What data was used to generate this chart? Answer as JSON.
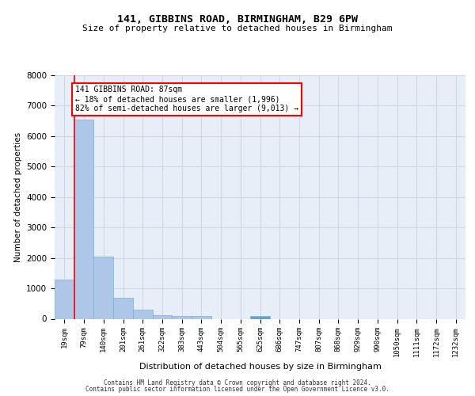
{
  "title1": "141, GIBBINS ROAD, BIRMINGHAM, B29 6PW",
  "title2": "Size of property relative to detached houses in Birmingham",
  "xlabel": "Distribution of detached houses by size in Birmingham",
  "ylabel": "Number of detached properties",
  "bin_labels": [
    "19sqm",
    "79sqm",
    "140sqm",
    "201sqm",
    "261sqm",
    "322sqm",
    "383sqm",
    "443sqm",
    "504sqm",
    "565sqm",
    "625sqm",
    "686sqm",
    "747sqm",
    "807sqm",
    "868sqm",
    "929sqm",
    "990sqm",
    "1050sqm",
    "1111sqm",
    "1172sqm",
    "1232sqm"
  ],
  "bar_values": [
    1300,
    6550,
    2050,
    680,
    290,
    130,
    80,
    100,
    0,
    0,
    100,
    0,
    0,
    0,
    0,
    0,
    0,
    0,
    0,
    0,
    0
  ],
  "bar_colors": [
    "#aec6e8",
    "#aec6e8",
    "#aec6e8",
    "#aec6e8",
    "#aec6e8",
    "#aec6e8",
    "#aec6e8",
    "#aec6e8",
    "#aec6e8",
    "#aec6e8",
    "#6a9fd8",
    "#aec6e8",
    "#aec6e8",
    "#aec6e8",
    "#aec6e8",
    "#aec6e8",
    "#aec6e8",
    "#aec6e8",
    "#aec6e8",
    "#aec6e8",
    "#aec6e8"
  ],
  "bar_edge_color": "#7aaed4",
  "vline_color": "red",
  "vline_x": 0.5,
  "annotation_text": "141 GIBBINS ROAD: 87sqm\n← 18% of detached houses are smaller (1,996)\n82% of semi-detached houses are larger (9,013) →",
  "annotation_box_color": "white",
  "annotation_box_edge_color": "red",
  "ylim": [
    0,
    8000
  ],
  "yticks": [
    0,
    1000,
    2000,
    3000,
    4000,
    5000,
    6000,
    7000,
    8000
  ],
  "grid_color": "#d0d8e8",
  "bg_color": "#e8eef8",
  "footer1": "Contains HM Land Registry data © Crown copyright and database right 2024.",
  "footer2": "Contains public sector information licensed under the Open Government Licence v3.0."
}
